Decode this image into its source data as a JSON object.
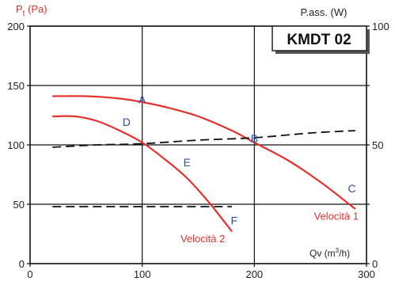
{
  "chart_data": {
    "type": "line",
    "y_label_main": "P",
    "y_label_sub": "t",
    "y_label_unit": " (Pa)",
    "y2_label": "P.ass. (W)",
    "x_label_main": "Qv (m",
    "x_label_sup": "3",
    "x_label_end": "/h)",
    "badge": "KMDT 02",
    "xlim": [
      0,
      300
    ],
    "ylim": [
      0,
      200
    ],
    "y2lim": [
      0,
      100
    ],
    "x_ticks": [
      "0",
      "100",
      "200",
      "300"
    ],
    "y_ticks": [
      "0",
      "50",
      "100",
      "150",
      "200"
    ],
    "y2_ticks": [
      "0",
      "50",
      "100"
    ],
    "grid": true,
    "series": [
      {
        "name": "Velocità 1",
        "kind": "pressure",
        "color": "#e3312d",
        "x": [
          20,
          50,
          80,
          100,
          120,
          150,
          180,
          200,
          230,
          260,
          290
        ],
        "y": [
          141,
          141,
          139,
          136,
          132,
          124,
          112,
          102,
          87,
          68,
          46
        ]
      },
      {
        "name": "Velocità 2",
        "kind": "pressure",
        "color": "#e3312d",
        "x": [
          20,
          40,
          60,
          80,
          100,
          120,
          140,
          160,
          180
        ],
        "y": [
          124,
          124,
          120,
          112,
          102,
          88,
          72,
          51,
          27
        ]
      },
      {
        "kind": "power",
        "color": "#111111",
        "dashed": true,
        "x": [
          20,
          60,
          100,
          150,
          200,
          250,
          290
        ],
        "y2": [
          49,
          50,
          50.5,
          52,
          53,
          55,
          56
        ]
      },
      {
        "kind": "power",
        "color": "#111111",
        "dashed": true,
        "x": [
          20,
          60,
          100,
          140,
          180
        ],
        "y2": [
          24,
          24,
          24,
          24,
          24
        ]
      }
    ],
    "points": [
      {
        "label": "A",
        "x": 100,
        "y": 135
      },
      {
        "label": "B",
        "x": 200,
        "y": 102
      },
      {
        "label": "C",
        "x": 287,
        "y": 60
      },
      {
        "label": "D",
        "x": 86,
        "y": 116
      },
      {
        "label": "E",
        "x": 140,
        "y": 82
      },
      {
        "label": "F",
        "x": 182,
        "y": 33
      }
    ],
    "curve_labels": [
      {
        "text": "Velocità 1",
        "x": 273,
        "y": 37
      },
      {
        "text": "Velocità 2",
        "x": 154,
        "y": 18
      }
    ]
  }
}
